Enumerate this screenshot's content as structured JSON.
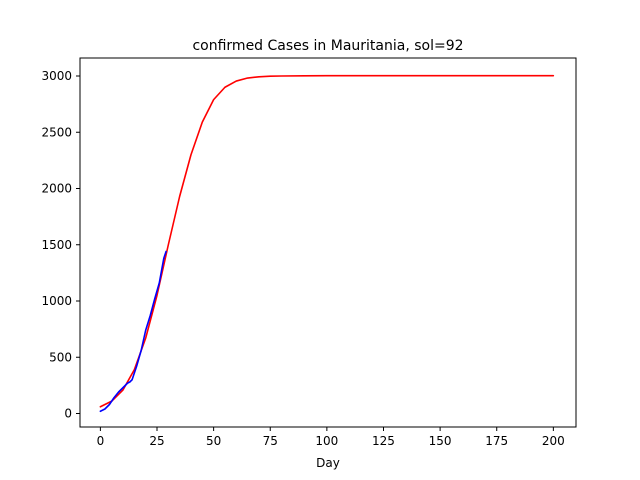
{
  "chart_data": {
    "type": "line",
    "title": "confirmed Cases in Mauritania, sol=92",
    "xlabel": "Day",
    "ylabel": "",
    "xlim": [
      -9,
      210
    ],
    "ylim": [
      -120,
      3160
    ],
    "x_ticks": [
      0,
      25,
      50,
      75,
      100,
      125,
      150,
      175,
      200
    ],
    "y_ticks": [
      0,
      500,
      1000,
      1500,
      2000,
      2500,
      3000
    ],
    "grid": false,
    "legend": "none",
    "series": [
      {
        "color": "#ff0000",
        "style": "line",
        "x": [
          0,
          5,
          10,
          15,
          20,
          25,
          30,
          35,
          40,
          45,
          50,
          55,
          60,
          65,
          70,
          75,
          80,
          90,
          100,
          125,
          150,
          175,
          200
        ],
        "y": [
          60,
          110,
          210,
          390,
          670,
          1050,
          1500,
          1930,
          2300,
          2590,
          2790,
          2900,
          2955,
          2982,
          2993,
          2998,
          3000,
          3002,
          3003,
          3003,
          3003,
          3003,
          3003
        ]
      },
      {
        "color": "#0000ff",
        "style": "line",
        "x": [
          0,
          2,
          4,
          6,
          8,
          10,
          12,
          13,
          14,
          16,
          18,
          20,
          22,
          24,
          26,
          28,
          29
        ],
        "y": [
          20,
          40,
          80,
          140,
          190,
          230,
          270,
          280,
          300,
          420,
          560,
          740,
          870,
          1020,
          1160,
          1380,
          1440
        ]
      }
    ]
  }
}
